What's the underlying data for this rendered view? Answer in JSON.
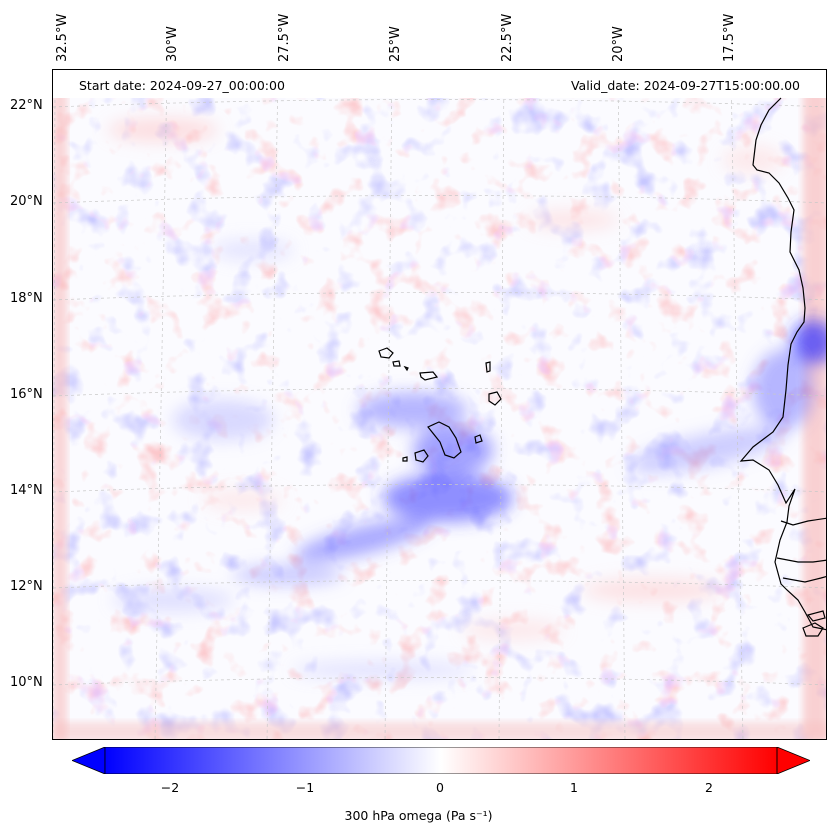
{
  "map": {
    "start_date": "Start date: 2024-09-27_00:00:00",
    "valid_date": "Valid_date: 2024-09-27T15:00:00.00",
    "lon_labels": [
      "32.5°W",
      "30°W",
      "27.5°W",
      "25°W",
      "22.5°W",
      "20°W",
      "17.5°W"
    ],
    "lat_labels": [
      "22°N",
      "20°N",
      "18°N",
      "16°N",
      "14°N",
      "12°N",
      "10°N"
    ],
    "colors": {
      "negative": "#0000ff",
      "zero": "#ffffff",
      "positive": "#ff0000",
      "coast": "#000000",
      "grid": "#c8c8c8"
    }
  },
  "colorbar": {
    "label": "300 hPa omega (Pa s⁻¹)",
    "ticks": [
      "−2",
      "−1",
      "0",
      "1",
      "2"
    ]
  }
}
